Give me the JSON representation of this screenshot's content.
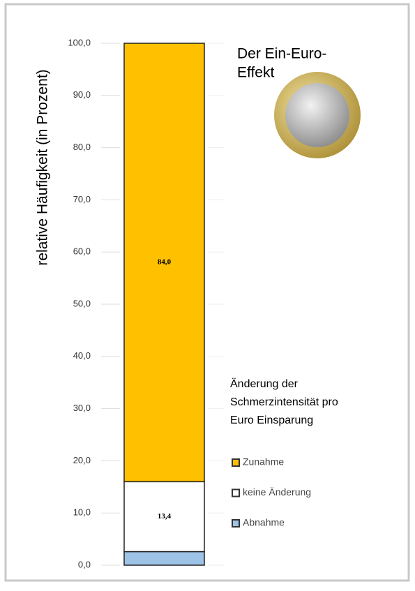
{
  "chart_data": {
    "type": "stacked_bar",
    "title": [
      "Der Ein-Euro-",
      "Effekt"
    ],
    "y_label": "relative Häufigkeit (in Prozent)",
    "legend_title": [
      "Änderung der",
      "Schmerzintensität pro",
      "Euro Einsparung"
    ],
    "categories": [
      null
    ],
    "series": [
      {
        "name": "Abnahme",
        "color": "#9dc3e6",
        "values": [
          2.6
        ]
      },
      {
        "name": "keine Änderung",
        "color": "#ffffff",
        "values": [
          13.4
        ],
        "value_labels": [
          "13,4"
        ]
      },
      {
        "name": "Zunahme",
        "color": "#ffc000",
        "values": [
          84.0
        ],
        "value_labels": [
          "84,0"
        ]
      }
    ],
    "ylim": [
      0,
      100
    ],
    "yticks": [
      {
        "value": 0,
        "label": "0,0"
      },
      {
        "value": 10,
        "label": "10,0"
      },
      {
        "value": 20,
        "label": "20,0"
      },
      {
        "value": 30,
        "label": "30,0"
      },
      {
        "value": 40,
        "label": "40,0"
      },
      {
        "value": 50,
        "label": "50,0"
      },
      {
        "value": 60,
        "label": "60,0"
      },
      {
        "value": 70,
        "label": "70,0"
      },
      {
        "value": 80,
        "label": "80,0"
      },
      {
        "value": 90,
        "label": "90,0"
      },
      {
        "value": 100,
        "label": "100,0"
      }
    ],
    "grid": true,
    "legend": "right"
  }
}
